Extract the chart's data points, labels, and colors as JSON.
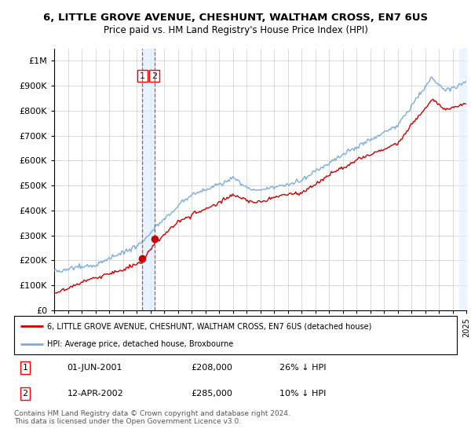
{
  "title": "6, LITTLE GROVE AVENUE, CHESHUNT, WALTHAM CROSS, EN7 6US",
  "subtitle": "Price paid vs. HM Land Registry's House Price Index (HPI)",
  "sale1_label": "01-JUN-2001",
  "sale1_price": 208000,
  "sale1_hpi_pct": "26% ↓ HPI",
  "sale2_label": "12-APR-2002",
  "sale2_price": 285000,
  "sale2_hpi_pct": "10% ↓ HPI",
  "legend_line1": "6, LITTLE GROVE AVENUE, CHESHUNT, WALTHAM CROSS, EN7 6US (detached house)",
  "legend_line2": "HPI: Average price, detached house, Broxbourne",
  "footnote": "Contains HM Land Registry data © Crown copyright and database right 2024.\nThis data is licensed under the Open Government Licence v3.0.",
  "line_color_red": "#cc0000",
  "line_color_blue": "#7aade0",
  "shade_color": "#ddeeff",
  "dashed_line_color": "#dd4444",
  "ylim_max": 1050000,
  "ylim_min": 0,
  "sale1_x": 2001.417,
  "sale2_x": 2002.292
}
